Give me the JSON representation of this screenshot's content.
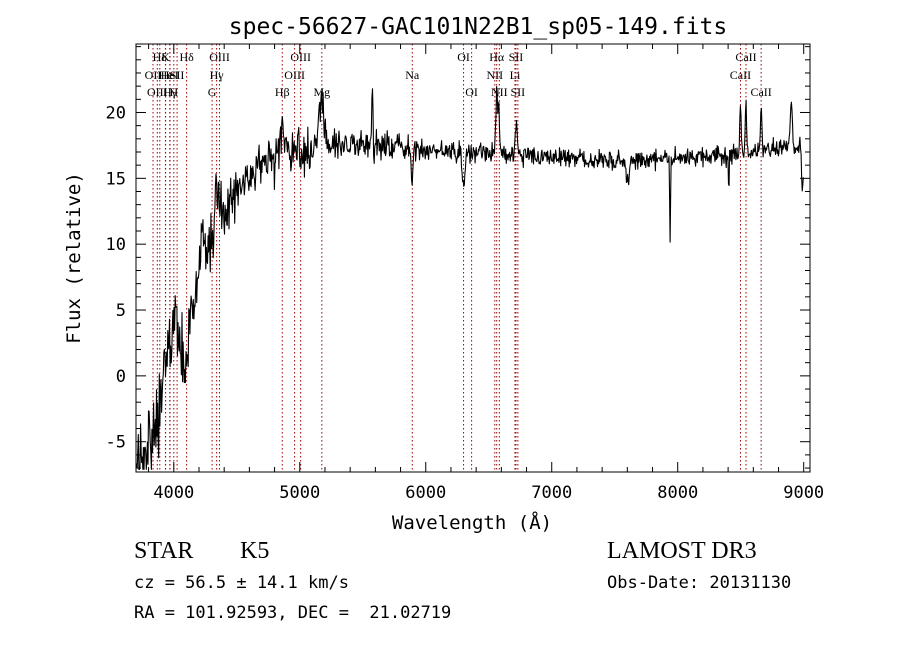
{
  "chart_data": {
    "type": "line",
    "title": "spec-56627-GAC101N22B1_sp05-149.fits",
    "xlabel": "Wavelength (Å)",
    "ylabel": "Flux (relative)",
    "xlim": [
      3700,
      9050
    ],
    "ylim": [
      -7.3,
      25.2
    ],
    "xticks": [
      4000,
      5000,
      6000,
      7000,
      8000,
      9000
    ],
    "yticks": [
      -5,
      0,
      5,
      10,
      15,
      20
    ],
    "grid": false,
    "colors": {
      "spectrum": "#000000",
      "lines": "#aa0000",
      "axes": "#000000"
    },
    "continuum": [
      [
        3700,
        -6.8
      ],
      [
        3800,
        -6.0
      ],
      [
        3900,
        -3.5
      ],
      [
        4000,
        0.5
      ],
      [
        4100,
        4.0
      ],
      [
        4200,
        7.5
      ],
      [
        4300,
        10.0
      ],
      [
        4400,
        12.0
      ],
      [
        4500,
        14.0
      ],
      [
        4700,
        15.8
      ],
      [
        5000,
        17.0
      ],
      [
        5300,
        17.5
      ],
      [
        5600,
        17.4
      ],
      [
        6000,
        17.1
      ],
      [
        6500,
        16.9
      ],
      [
        7000,
        16.6
      ],
      [
        7500,
        16.4
      ],
      [
        8000,
        16.5
      ],
      [
        8400,
        16.8
      ],
      [
        8700,
        17.2
      ],
      [
        9000,
        17.5
      ]
    ],
    "features": [
      [
        3860,
        1.5,
        25
      ],
      [
        3930,
        3.0,
        25
      ],
      [
        4000,
        4.0,
        25
      ],
      [
        4100,
        -3.0,
        20
      ],
      [
        4230,
        3.0,
        20
      ],
      [
        4340,
        3.5,
        20
      ],
      [
        4861,
        2.0,
        20
      ],
      [
        5170,
        3.0,
        25
      ],
      [
        5576,
        5.5,
        4
      ],
      [
        5890,
        -2.5,
        8
      ],
      [
        6300,
        -3.0,
        8
      ],
      [
        6563,
        4.5,
        8
      ],
      [
        6580,
        3.0,
        6
      ],
      [
        6717,
        2.5,
        8
      ],
      [
        7600,
        -1.5,
        15
      ],
      [
        7940,
        -6.5,
        3
      ],
      [
        8405,
        -2.5,
        4
      ],
      [
        8498,
        3.5,
        5
      ],
      [
        8542,
        4.0,
        5
      ],
      [
        8662,
        3.5,
        5
      ],
      [
        8900,
        3.5,
        8
      ],
      [
        8990,
        -4.0,
        6
      ]
    ],
    "lines": [
      {
        "wave": 3835,
        "row": 2,
        "label": "OII"
      },
      {
        "wave": 3869,
        "row": 3,
        "label": "OIII"
      },
      {
        "wave": 3889,
        "row": 1,
        "label": "Hδ"
      },
      {
        "wave": 3934,
        "row": 1,
        "label": "K"
      },
      {
        "wave": 3935,
        "row": 2,
        "label": "He"
      },
      {
        "wave": 3970,
        "row": 3,
        "label": "Hγ"
      },
      {
        "wave": 3968,
        "row": 2,
        "label": "HeI"
      },
      {
        "wave": 4026,
        "row": 2,
        "label": "SII"
      },
      {
        "wave": 4000,
        "row": 3,
        "label": "H"
      },
      {
        "wave": 4102,
        "row": 1,
        "label": "Hδ"
      },
      {
        "wave": 4304,
        "row": 3,
        "label": "G"
      },
      {
        "wave": 4340,
        "row": 2,
        "label": "Hγ"
      },
      {
        "wave": 4363,
        "row": 1,
        "label": "OIII"
      },
      {
        "wave": 4861,
        "row": 3,
        "label": "Hβ"
      },
      {
        "wave": 4959,
        "row": 2,
        "label": "OIII"
      },
      {
        "wave": 5007,
        "row": 1,
        "label": "OIII"
      },
      {
        "wave": 5175,
        "row": 3,
        "label": "Mg"
      },
      {
        "wave": 5893,
        "row": 2,
        "label": "Na"
      },
      {
        "wave": 6300,
        "row": 1,
        "label": "OI"
      },
      {
        "wave": 6364,
        "row": 3,
        "label": "OI"
      },
      {
        "wave": 6548,
        "row": 2,
        "label": "NII"
      },
      {
        "wave": 6563,
        "row": 1,
        "label": "Hα"
      },
      {
        "wave": 6584,
        "row": 3,
        "label": "NII"
      },
      {
        "wave": 6716,
        "row": 1,
        "label": "SII"
      },
      {
        "wave": 6731,
        "row": 3,
        "label": "SII"
      },
      {
        "wave": 6708,
        "row": 2,
        "label": "Li"
      },
      {
        "wave": 8498,
        "row": 2,
        "label": "CaII"
      },
      {
        "wave": 8542,
        "row": 1,
        "label": "CaII"
      },
      {
        "wave": 8662,
        "row": 3,
        "label": "CaII"
      }
    ]
  },
  "info": {
    "object_class": "STAR",
    "subclass": "K5",
    "survey": "LAMOST DR3",
    "velocity": "cz = 56.5 ± 14.1 km/s",
    "obs_date": "Obs-Date: 20131130",
    "coords": "RA = 101.92593, DEC =  21.02719"
  }
}
